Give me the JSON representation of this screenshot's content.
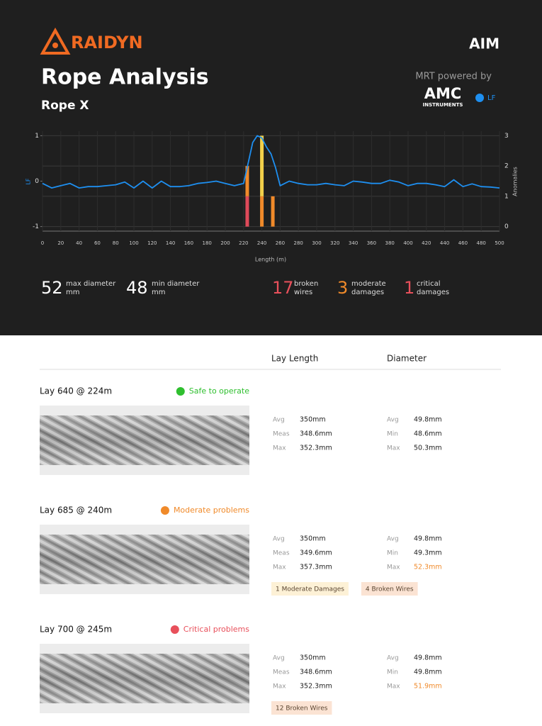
{
  "header": {
    "brand": "RAIDYN",
    "partner": "AIM",
    "title": "Rope Analysis",
    "subtitle": "Rope X",
    "powered_by": "MRT powered by",
    "amc": "AMC",
    "amc_sub": "INSTRUMENTS"
  },
  "chart_data": {
    "type": "line",
    "x": [
      0,
      10,
      20,
      30,
      40,
      50,
      60,
      70,
      80,
      90,
      100,
      110,
      120,
      130,
      140,
      150,
      160,
      170,
      180,
      190,
      200,
      210,
      220,
      225,
      230,
      235,
      240,
      245,
      250,
      255,
      260,
      265,
      270,
      280,
      290,
      300,
      310,
      320,
      330,
      340,
      350,
      360,
      370,
      380,
      390,
      400,
      410,
      420,
      430,
      440,
      450,
      460,
      470,
      480,
      490,
      500
    ],
    "series": [
      {
        "name": "LF",
        "color": "#1e8ff0",
        "values": [
          -0.05,
          -0.15,
          -0.1,
          -0.05,
          -0.15,
          -0.12,
          -0.12,
          -0.1,
          -0.08,
          -0.02,
          -0.15,
          0.0,
          -0.15,
          0.0,
          -0.12,
          -0.12,
          -0.1,
          -0.05,
          -0.03,
          0.0,
          -0.05,
          -0.1,
          -0.05,
          0.4,
          0.85,
          1.0,
          0.95,
          0.75,
          0.6,
          0.3,
          -0.1,
          -0.05,
          0.0,
          -0.05,
          -0.08,
          -0.08,
          -0.05,
          -0.08,
          -0.1,
          0.0,
          -0.02,
          -0.05,
          -0.05,
          0.02,
          -0.02,
          -0.1,
          -0.05,
          -0.05,
          -0.08,
          -0.12,
          0.03,
          -0.12,
          -0.06,
          -0.12,
          -0.13,
          -0.15
        ]
      }
    ],
    "anomalies": {
      "x": [
        224,
        240,
        252
      ],
      "series": [
        {
          "color": "#e04a5a",
          "values": [
            1,
            0,
            0
          ]
        },
        {
          "color": "#f08a2a",
          "values": [
            1,
            1,
            1
          ]
        },
        {
          "color": "#f2d04a",
          "values": [
            0,
            2,
            0
          ]
        }
      ]
    },
    "xlabel": "Length (m)",
    "ylabel": "LF",
    "y2label": "Anomalies",
    "xlim": [
      0,
      500
    ],
    "xticks": [
      0,
      20,
      40,
      60,
      80,
      100,
      120,
      140,
      160,
      180,
      200,
      220,
      240,
      260,
      280,
      300,
      320,
      340,
      360,
      380,
      400,
      420,
      440,
      460,
      480,
      500
    ],
    "ylim": [
      -1.1,
      1.1
    ],
    "yticks": [
      1,
      0,
      -1
    ],
    "y2lim": [
      -0.15,
      3.15
    ],
    "y2ticks": [
      0,
      1,
      2,
      3
    ],
    "grid": true
  },
  "stats": [
    {
      "value": "52",
      "label": [
        "max diameter",
        "mm"
      ],
      "color": "#ffffff"
    },
    {
      "value": "48",
      "label": [
        "min diameter",
        "mm"
      ],
      "color": "#ffffff"
    },
    {
      "value": "17",
      "label": [
        "broken",
        "wires"
      ],
      "color": "#e8505b"
    },
    {
      "value": "3",
      "label": [
        "moderate",
        "damages"
      ],
      "color": "#f08a2a"
    },
    {
      "value": "1",
      "label": [
        "critical",
        "damages"
      ],
      "color": "#e8505b"
    }
  ],
  "table": {
    "headers": [
      "Lay Length",
      "Diameter"
    ],
    "lays": [
      {
        "title": "Lay 640 @ 224m",
        "status": "Safe to operate",
        "status_color": "#2fbf2f",
        "lay_length": [
          {
            "label": "Avg",
            "value": "350mm"
          },
          {
            "label": "Meas",
            "value": "348.6mm"
          },
          {
            "label": "Max",
            "value": "352.3mm"
          }
        ],
        "diameter": [
          {
            "label": "Avg",
            "value": "49.8mm"
          },
          {
            "label": "Min",
            "value": "48.6mm"
          },
          {
            "label": "Max",
            "value": "50.3mm"
          }
        ],
        "tags": []
      },
      {
        "title": "Lay 685 @ 240m",
        "status": "Moderate problems",
        "status_color": "#f08a2a",
        "lay_length": [
          {
            "label": "Avg",
            "value": "350mm"
          },
          {
            "label": "Meas",
            "value": "349.6mm"
          },
          {
            "label": "Max",
            "value": "357.3mm"
          }
        ],
        "diameter": [
          {
            "label": "Avg",
            "value": "49.8mm"
          },
          {
            "label": "Min",
            "value": "49.3mm"
          },
          {
            "label": "Max",
            "value": "52.3mm",
            "color": "#f08a2a"
          }
        ],
        "tags": [
          {
            "text": "1 Moderate Damages",
            "color": "#fdf1d6"
          },
          {
            "text": "4 Broken Wires",
            "color": "#fbe3d3"
          }
        ]
      },
      {
        "title": "Lay 700 @ 245m",
        "status": "Critical problems",
        "status_color": "#e8505b",
        "lay_length": [
          {
            "label": "Avg",
            "value": "350mm"
          },
          {
            "label": "Meas",
            "value": "348.6mm"
          },
          {
            "label": "Max",
            "value": "352.3mm"
          }
        ],
        "diameter": [
          {
            "label": "Avg",
            "value": "49.8mm"
          },
          {
            "label": "Min",
            "value": "49.8mm"
          },
          {
            "label": "Max",
            "value": "51.9mm",
            "color": "#f08a2a"
          }
        ],
        "tags": [
          {
            "text": "12 Broken Wires",
            "color": "#fbe3d3"
          }
        ]
      }
    ]
  }
}
